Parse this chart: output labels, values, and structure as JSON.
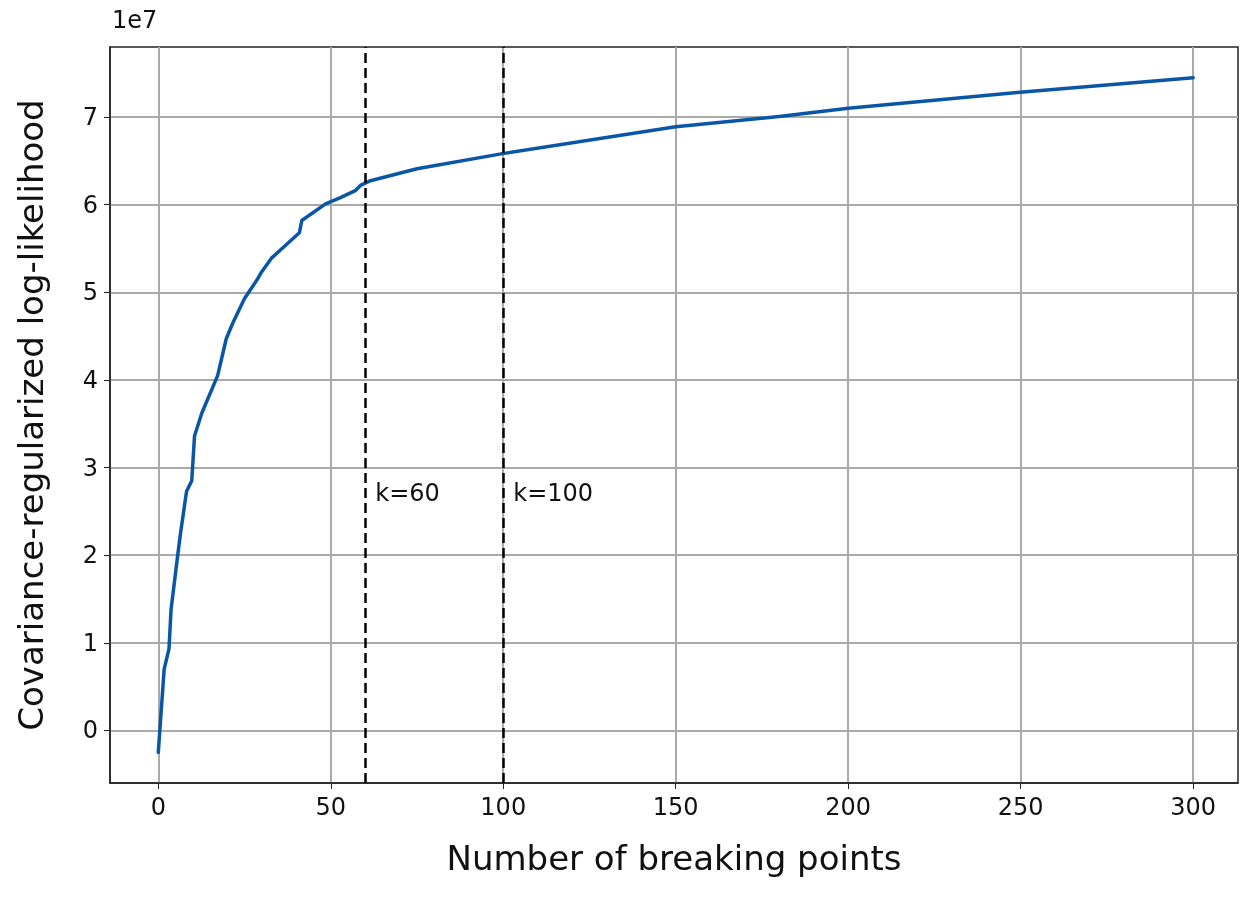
{
  "chart_data": {
    "type": "line",
    "xlabel": "Number of breaking points",
    "ylabel": "Covariance-regularized log-likelihood",
    "annotations": [
      "1e7"
    ],
    "series": [
      {
        "color": "#0a56a6",
        "x": [
          0,
          1.7,
          3.1,
          3.7,
          5.5,
          6.4,
          8.2,
          9.7,
          10.5,
          12.6,
          17.2,
          19.7,
          21.6,
          25,
          28.9,
          29.9,
          32.8,
          40.9,
          41.6,
          48.5,
          52.8,
          57.1,
          58.6,
          61.2,
          75,
          99.4,
          150,
          180.6,
          200,
          249,
          300
        ],
        "values": [
          -0.25,
          0.7,
          0.93,
          1.38,
          1.96,
          2.24,
          2.73,
          2.85,
          3.36,
          3.62,
          4.05,
          4.47,
          4.65,
          4.93,
          5.16,
          5.23,
          5.39,
          5.68,
          5.82,
          6.01,
          6.08,
          6.16,
          6.22,
          6.27,
          6.41,
          6.58,
          6.89,
          7.01,
          7.1,
          7.28,
          7.45
        ]
      }
    ],
    "xlim": [
      -14,
      313
    ],
    "xticks": [
      0,
      50,
      100,
      150,
      200,
      250,
      300
    ],
    "ylim": [
      -0.6,
      7.8
    ],
    "yticks": [
      0,
      1,
      2,
      3,
      4,
      5,
      6,
      7
    ],
    "grid": true,
    "marker": "none",
    "line_style": "solid",
    "ref_lines": [
      {
        "axis": "x",
        "value": 60,
        "label": "k=60",
        "color": "#000000",
        "line_style": "dashed"
      },
      {
        "axis": "x",
        "value": 100,
        "label": "k=100",
        "color": "#000000",
        "line_style": "dashed"
      }
    ]
  }
}
